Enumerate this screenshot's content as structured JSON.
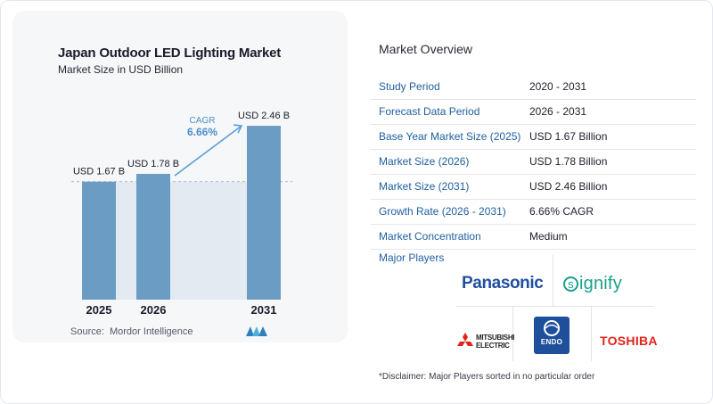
{
  "chart_data": {
    "type": "bar",
    "title": "Japan Outdoor LED Lighting Market",
    "subtitle": "Market Size in USD Billion",
    "categories": [
      "2025",
      "2026",
      "2031"
    ],
    "values": [
      1.67,
      1.78,
      2.46
    ],
    "value_labels": [
      "USD 1.67 B",
      "USD 1.78 B",
      "USD 2.46 B"
    ],
    "ylim": [
      0,
      2.6
    ],
    "grid": false,
    "annotation": {
      "label": "CAGR",
      "value": "6.66%"
    },
    "colors": {
      "bar": "#6a9cc4",
      "band": "#e3eaf1",
      "dashed_line": "#a9bfd4",
      "arrow": "#5a9fd6",
      "cagr_text": "#4a8fc8"
    }
  },
  "source": {
    "label": "Source:",
    "value": "Mordor Intelligence"
  },
  "overview": {
    "title": "Market Overview",
    "rows": [
      {
        "key": "Study Period",
        "value": "2020 - 2031"
      },
      {
        "key": "Forecast Data Period",
        "value": "2026 - 2031"
      },
      {
        "key": "Base Year Market Size (2025)",
        "value": "USD 1.67 Billion"
      },
      {
        "key": "Market Size (2026)",
        "value": "USD 1.78 Billion"
      },
      {
        "key": "Market Size (2031)",
        "value": "USD 2.46 Billion"
      },
      {
        "key": "Growth Rate (2026 - 2031)",
        "value": "6.66% CAGR"
      },
      {
        "key": "Market Concentration",
        "value": "Medium"
      }
    ]
  },
  "players": {
    "title": "Major Players",
    "logos": [
      "Panasonic",
      "Signify",
      "MITSUBISHI ELECTRIC",
      "ENDO",
      "TOSHIBA"
    ],
    "panasonic": "Panasonic",
    "signify_rest": "ignify",
    "signify_ring": "s",
    "mitsubishi_line1": "MITSUBISHI",
    "mitsubishi_line2": "ELECTRIC",
    "endo": "ENDO",
    "toshiba": "TOSHIBA"
  },
  "disclaimer": "*Disclaimer: Major Players sorted in no particular order"
}
